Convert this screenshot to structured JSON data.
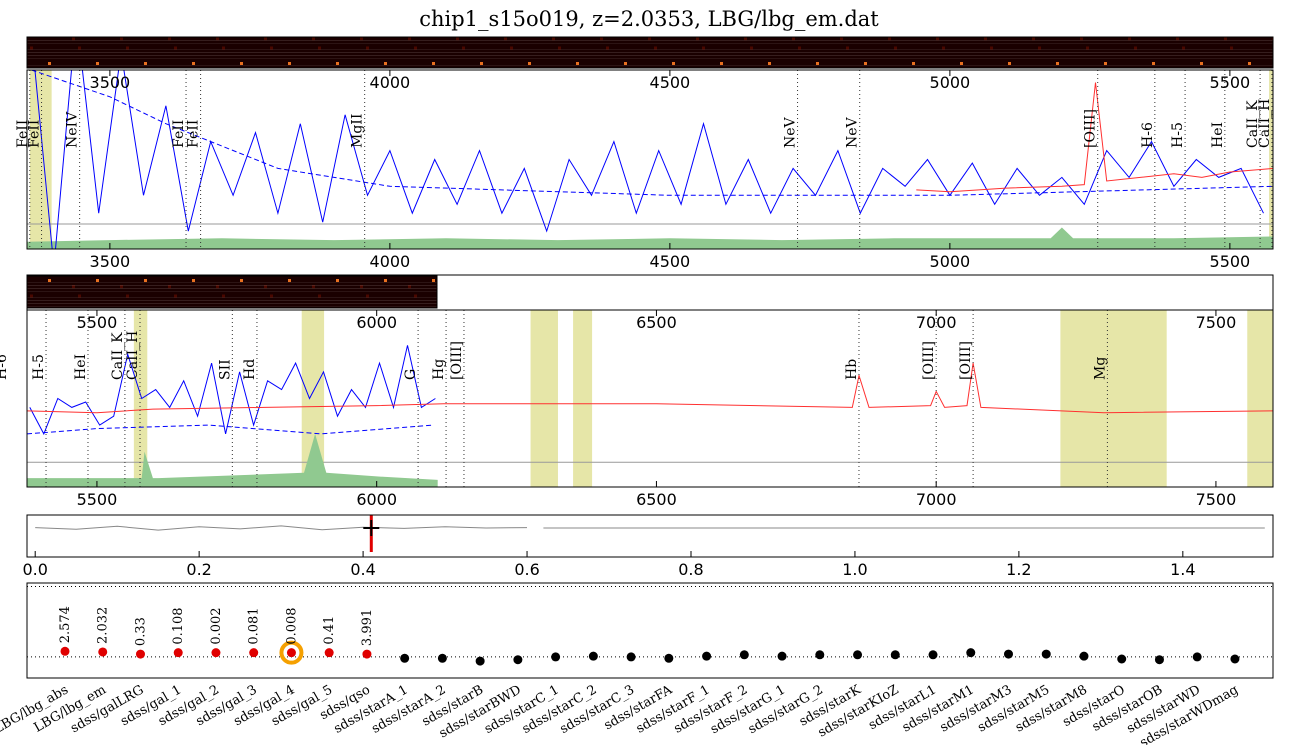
{
  "chart_data": [
    {
      "type": "spectrum",
      "title": "chip1_s15o019, z=2.0353, LBG/lbg_em.dat",
      "xlim": [
        3352,
        5577
      ],
      "ylim": [
        0,
        1
      ],
      "xticks": [
        3500,
        4000,
        4500,
        5000,
        5500
      ],
      "baseline": 0.14,
      "shaded": [
        [
          3357,
          3396
        ],
        [
          5570,
          5577
        ]
      ],
      "lines": [
        {
          "label": "FeII",
          "x": 3357
        },
        {
          "label": "FeII",
          "x": 3378
        },
        {
          "label": "NeIV",
          "x": 3446
        },
        {
          "label": "FeII",
          "x": 3636
        },
        {
          "label": "FeII",
          "x": 3662
        },
        {
          "label": "MgII",
          "x": 3955
        },
        {
          "label": "NeV",
          "x": 4728
        },
        {
          "label": "NeV",
          "x": 4839
        },
        {
          "label": "[OIII]",
          "x": 5264
        },
        {
          "label": "H-6",
          "x": 5366
        },
        {
          "label": "H-5",
          "x": 5420
        },
        {
          "label": "HeI",
          "x": 5491
        },
        {
          "label": "CaII_K",
          "x": 5554
        },
        {
          "label": "CaII_H",
          "x": 5575
        }
      ],
      "series": [
        {
          "color": "#90c990",
          "style": "area",
          "x": [
            3352,
            3500,
            3700,
            3900,
            4100,
            4300,
            4500,
            4700,
            4900,
            5100,
            5180,
            5200,
            5220,
            5400,
            5577
          ],
          "values": [
            0.04,
            0.05,
            0.06,
            0.05,
            0.06,
            0.05,
            0.06,
            0.05,
            0.06,
            0.06,
            0.06,
            0.12,
            0.06,
            0.06,
            0.07
          ]
        },
        {
          "color": "#0000ff",
          "style": "solid",
          "x": [
            3360,
            3400,
            3440,
            3480,
            3520,
            3560,
            3600,
            3640,
            3680,
            3720,
            3760,
            3800,
            3840,
            3880,
            3920,
            3960,
            4000,
            4040,
            4080,
            4120,
            4160,
            4200,
            4240,
            4280,
            4320,
            4360,
            4400,
            4440,
            4480,
            4520,
            4560,
            4600,
            4640,
            4680,
            4720,
            4760,
            4800,
            4840,
            4880,
            4920,
            4960,
            5000,
            5040,
            5080,
            5120,
            5160,
            5200,
            5240,
            5280,
            5320,
            5360,
            5400,
            5440,
            5480,
            5520,
            5560
          ],
          "values": [
            1.2,
            -0.1,
            1.3,
            0.2,
            1.1,
            0.3,
            0.8,
            0.1,
            0.6,
            0.3,
            0.65,
            0.2,
            0.7,
            0.15,
            0.75,
            0.3,
            0.55,
            0.2,
            0.5,
            0.25,
            0.55,
            0.2,
            0.45,
            0.1,
            0.5,
            0.3,
            0.6,
            0.2,
            0.55,
            0.25,
            0.7,
            0.25,
            0.5,
            0.2,
            0.45,
            0.3,
            0.55,
            0.2,
            0.45,
            0.35,
            0.5,
            0.3,
            0.48,
            0.25,
            0.45,
            0.3,
            0.4,
            0.25,
            0.55,
            0.4,
            0.6,
            0.35,
            0.5,
            0.4,
            0.45,
            0.2
          ]
        },
        {
          "color": "#0000ff",
          "style": "dashed",
          "x": [
            3360,
            3500,
            3600,
            3800,
            4000,
            4500,
            5000,
            5577
          ],
          "values": [
            1.0,
            0.85,
            0.7,
            0.45,
            0.35,
            0.3,
            0.3,
            0.35
          ]
        },
        {
          "color": "#ff3030",
          "style": "solid",
          "x": [
            4940,
            5000,
            5100,
            5200,
            5240,
            5260,
            5280,
            5340,
            5400,
            5450,
            5500,
            5577
          ],
          "values": [
            0.33,
            0.32,
            0.34,
            0.35,
            0.36,
            0.93,
            0.38,
            0.4,
            0.42,
            0.4,
            0.43,
            0.45
          ]
        }
      ]
    },
    {
      "type": "spectrum",
      "xlim": [
        5375,
        7602
      ],
      "ylim": [
        0,
        1
      ],
      "xticks": [
        5500,
        6000,
        6500,
        7000,
        7500
      ],
      "baseline": 0.14,
      "shaded": [
        [
          5566,
          5590
        ],
        [
          5866,
          5906
        ],
        [
          6275,
          6324
        ],
        [
          6351,
          6385
        ],
        [
          7222,
          7412
        ],
        [
          7556,
          7602
        ]
      ],
      "lines": [
        {
          "label": "H-6",
          "x": 5343
        },
        {
          "label": "H-5",
          "x": 5409
        },
        {
          "label": "HeI",
          "x": 5484
        },
        {
          "label": "CaII_K",
          "x": 5550
        },
        {
          "label": "CaII_H",
          "x": 5577
        },
        {
          "label": "SII",
          "x": 5742
        },
        {
          "label": "Hd",
          "x": 5786
        },
        {
          "label": "G",
          "x": 6074
        },
        {
          "label": "Hg",
          "x": 6124
        },
        {
          "label": "[OIII]",
          "x": 6156
        },
        {
          "label": "Hb",
          "x": 6862
        },
        {
          "label": "[OIII]",
          "x": 7000
        },
        {
          "label": "[OIII]",
          "x": 7066
        },
        {
          "label": "Mg",
          "x": 7306
        }
      ],
      "series": [
        {
          "color": "#90c990",
          "style": "area",
          "x": [
            5375,
            5570,
            5580,
            5585,
            5600,
            5610,
            5870,
            5890,
            5910,
            6000,
            6109
          ],
          "values": [
            0.05,
            0.05,
            0.05,
            0.2,
            0.05,
            0.05,
            0.08,
            0.3,
            0.08,
            0.06,
            0.04
          ]
        },
        {
          "color": "#0000ff",
          "style": "solid",
          "x": [
            5380,
            5405,
            5430,
            5455,
            5480,
            5505,
            5530,
            5555,
            5580,
            5605,
            5630,
            5655,
            5680,
            5705,
            5730,
            5755,
            5780,
            5805,
            5830,
            5855,
            5880,
            5905,
            5930,
            5955,
            5980,
            6005,
            6030,
            6055,
            6080,
            6105
          ],
          "values": [
            0.45,
            0.3,
            0.5,
            0.45,
            0.48,
            0.35,
            0.4,
            0.75,
            0.5,
            0.55,
            0.45,
            0.6,
            0.4,
            0.7,
            0.3,
            0.65,
            0.35,
            0.6,
            0.55,
            0.7,
            0.5,
            0.65,
            0.4,
            0.55,
            0.45,
            0.7,
            0.45,
            0.8,
            0.45,
            0.5
          ]
        },
        {
          "color": "#0000ff",
          "style": "dashed",
          "x": [
            5375,
            5500,
            5700,
            5900,
            6100
          ],
          "values": [
            0.3,
            0.33,
            0.35,
            0.3,
            0.35
          ]
        },
        {
          "color": "#ff3030",
          "style": "solid",
          "x": [
            5375,
            5500,
            5600,
            5800,
            6000,
            6120,
            6500,
            6850,
            6862,
            6880,
            6990,
            7000,
            7015,
            7055,
            7066,
            7080,
            7300,
            7602
          ],
          "values": [
            0.43,
            0.42,
            0.44,
            0.45,
            0.46,
            0.47,
            0.47,
            0.45,
            0.63,
            0.45,
            0.46,
            0.54,
            0.45,
            0.46,
            0.7,
            0.45,
            0.42,
            0.43
          ]
        }
      ]
    },
    {
      "type": "line",
      "xlim": [
        -0.01,
        1.51
      ],
      "ylim": [
        0,
        1
      ],
      "xticks": [
        {
          "value": 0,
          "label": "0.0"
        },
        0.2,
        0.4,
        0.6,
        0.8,
        {
          "value": 1,
          "label": "1.0"
        },
        1.2,
        1.4
      ],
      "marker": 0.41,
      "series": [
        {
          "color": "#888888",
          "x": [
            0,
            0.05,
            0.1,
            0.15,
            0.2,
            0.25,
            0.3,
            0.35,
            0.4,
            0.45,
            0.5,
            0.55,
            0.6
          ],
          "values": [
            0.7,
            0.66,
            0.73,
            0.64,
            0.72,
            0.67,
            0.74,
            0.65,
            0.71,
            0.68,
            0.72,
            0.69,
            0.7
          ]
        },
        {
          "color": "#888888",
          "x": [
            0.62,
            1.5
          ],
          "values": [
            0.69,
            0.69
          ]
        }
      ]
    },
    {
      "type": "scatter",
      "ylim": [
        -0.3,
        1.05
      ],
      "hlines": [
        0,
        1
      ],
      "selected": 6,
      "categories": [
        "LBG/lbg_abs",
        "LBG/lbg_em",
        "sdss/galLRG",
        "sdss/gal_1",
        "sdss/gal_2",
        "sdss/gal_3",
        "sdss/gal_4",
        "sdss/gal_5",
        "sdss/qso",
        "sdss/starA_1",
        "sdss/starA_2",
        "sdss/starB",
        "sdss/starBWD",
        "sdss/starC_1",
        "sdss/starC_2",
        "sdss/starC_3",
        "sdss/starFA",
        "sdss/starF_1",
        "sdss/starF_2",
        "sdss/starG_1",
        "sdss/starG_2",
        "sdss/starK",
        "sdss/starKIoZ",
        "sdss/starL1",
        "sdss/starM1",
        "sdss/starM3",
        "sdss/starM5",
        "sdss/starM8",
        "sdss/starO",
        "sdss/starOB",
        "sdss/starWD",
        "sdss/starWDmag"
      ],
      "redshifts": [
        2.574,
        2.032,
        0.33,
        0.108,
        0.002,
        0.081,
        0.008,
        0.41,
        3.991
      ],
      "series": [
        {
          "color": "#e00000",
          "values": [
            0.08,
            0.07,
            0.04,
            0.06,
            0.06,
            0.06,
            0.06,
            0.06,
            0.04,
            null,
            null,
            null,
            null,
            null,
            null,
            null,
            null,
            null,
            null,
            null,
            null,
            null,
            null,
            null,
            null,
            null,
            null,
            null,
            null,
            null,
            null,
            null
          ]
        },
        {
          "color": "#000000",
          "values": [
            null,
            null,
            null,
            null,
            null,
            null,
            null,
            null,
            null,
            -0.02,
            -0.02,
            -0.06,
            -0.04,
            0,
            0.01,
            0,
            -0.02,
            0.01,
            0.03,
            0.01,
            0.03,
            0.03,
            0.03,
            0.03,
            0.06,
            0.04,
            0.04,
            0.01,
            -0.03,
            -0.04,
            0,
            -0.03
          ]
        }
      ]
    }
  ]
}
